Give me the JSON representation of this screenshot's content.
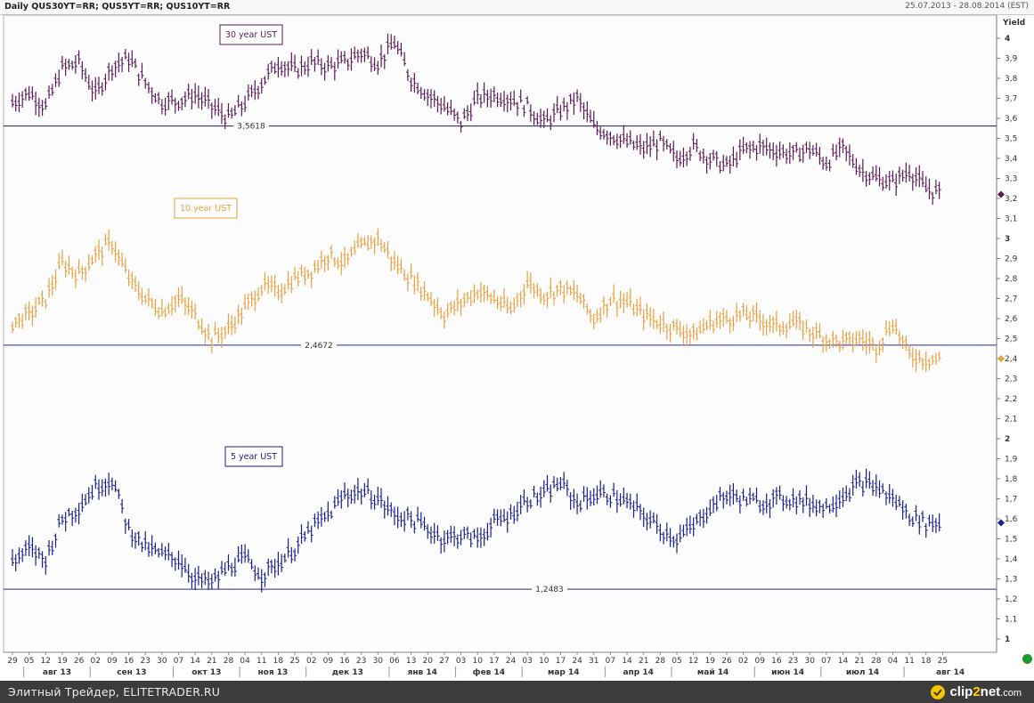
{
  "header": {
    "title": "Daily QUS30YT=RR; QUS5YT=RR; QUS10YT=RR",
    "range": "25.07.2013 - 28.08.2014 (EST)"
  },
  "footer": {
    "text": "Элитный Трейдер, ELITETRADER.RU",
    "logo_left": "clip",
    "logo_mid": "2",
    "logo_right": "net",
    "logo_suffix": ".com"
  },
  "colors": {
    "us30": "#5a1a55",
    "us10": "#e8a040",
    "us5": "#1a1f8a",
    "hline": "#2a2a9a",
    "hline30": "#1a1a50"
  },
  "chart_data": {
    "type": "ohlc-bar",
    "ylabel": "Yield",
    "ylim": [
      0.9,
      4.1
    ],
    "yticks": [
      "1",
      "1,1",
      "1,2",
      "1,3",
      "1,4",
      "1,5",
      "1,6",
      "1,7",
      "1,8",
      "1,9",
      "2",
      "2,1",
      "2,2",
      "2,3",
      "2,4",
      "2,5",
      "2,6",
      "2,7",
      "2,8",
      "2,9",
      "3",
      "3,1",
      "3,2",
      "3,3",
      "3,4",
      "3,5",
      "3,6",
      "3,7",
      "3,8",
      "3,9",
      "4"
    ],
    "x_day_labels": [
      "29",
      "05",
      "12",
      "19",
      "26",
      "02",
      "09",
      "16",
      "23",
      "30",
      "07",
      "14",
      "21",
      "28",
      "04",
      "11",
      "18",
      "25",
      "02",
      "09",
      "16",
      "23",
      "30",
      "06",
      "13",
      "20",
      "27",
      "03",
      "10",
      "17",
      "24",
      "03",
      "10",
      "17",
      "24",
      "31",
      "07",
      "14",
      "21",
      "28",
      "05",
      "12",
      "19",
      "26",
      "02",
      "09",
      "16",
      "23",
      "30",
      "07",
      "14",
      "21",
      "28",
      "04",
      "11",
      "18",
      "25"
    ],
    "x_month_labels": [
      "авг 13",
      "сен 13",
      "окт 13",
      "ноя 13",
      "дек 13",
      "янв 14",
      "фев 14",
      "мар 14",
      "апр 14",
      "май 14",
      "июн 14",
      "июл 14",
      "авг 14"
    ],
    "series": [
      {
        "name": "30 year UST",
        "label_note": "legend box",
        "values": [
          3.68,
          3.73,
          3.66,
          3.85,
          3.88,
          3.72,
          3.86,
          3.9,
          3.78,
          3.68,
          3.69,
          3.72,
          3.66,
          3.6,
          3.68,
          3.78,
          3.88,
          3.84,
          3.88,
          3.86,
          3.88,
          3.93,
          3.88,
          3.98,
          3.8,
          3.72,
          3.66,
          3.58,
          3.7,
          3.72,
          3.7,
          3.66,
          3.58,
          3.64,
          3.7,
          3.56,
          3.52,
          3.48,
          3.45,
          3.48,
          3.4,
          3.46,
          3.4,
          3.36,
          3.44,
          3.46,
          3.44,
          3.42,
          3.45,
          3.38,
          3.45,
          3.35,
          3.3,
          3.28,
          3.34,
          3.25,
          3.22
        ]
      },
      {
        "name": "10 year UST",
        "values": [
          2.58,
          2.62,
          2.7,
          2.88,
          2.82,
          2.92,
          2.98,
          2.8,
          2.7,
          2.64,
          2.7,
          2.62,
          2.5,
          2.55,
          2.65,
          2.76,
          2.74,
          2.8,
          2.84,
          2.92,
          2.88,
          2.96,
          3.0,
          2.88,
          2.8,
          2.72,
          2.62,
          2.68,
          2.74,
          2.7,
          2.64,
          2.78,
          2.72,
          2.75,
          2.72,
          2.6,
          2.7,
          2.68,
          2.62,
          2.58,
          2.55,
          2.52,
          2.58,
          2.6,
          2.62,
          2.6,
          2.56,
          2.58,
          2.54,
          2.5,
          2.48,
          2.5,
          2.46,
          2.58,
          2.42,
          2.4,
          2.4
        ]
      },
      {
        "name": "5 year UST",
        "values": [
          1.39,
          1.45,
          1.4,
          1.6,
          1.66,
          1.76,
          1.8,
          1.55,
          1.46,
          1.42,
          1.4,
          1.3,
          1.28,
          1.36,
          1.4,
          1.32,
          1.38,
          1.45,
          1.55,
          1.62,
          1.72,
          1.74,
          1.7,
          1.62,
          1.6,
          1.55,
          1.5,
          1.52,
          1.5,
          1.58,
          1.62,
          1.7,
          1.72,
          1.78,
          1.68,
          1.72,
          1.72,
          1.68,
          1.62,
          1.55,
          1.5,
          1.56,
          1.66,
          1.72,
          1.7,
          1.68,
          1.7,
          1.7,
          1.68,
          1.66,
          1.72,
          1.78,
          1.76,
          1.7,
          1.62,
          1.58,
          1.58
        ]
      }
    ],
    "horizontal_lines": [
      {
        "value": 3.5618,
        "label": "3,5618"
      },
      {
        "value": 2.4672,
        "label": "2,4672"
      },
      {
        "value": 1.2483,
        "label": "1,2483"
      }
    ],
    "legend_labels": [
      "30 year UST",
      "10 year UST",
      "5 year UST"
    ]
  }
}
